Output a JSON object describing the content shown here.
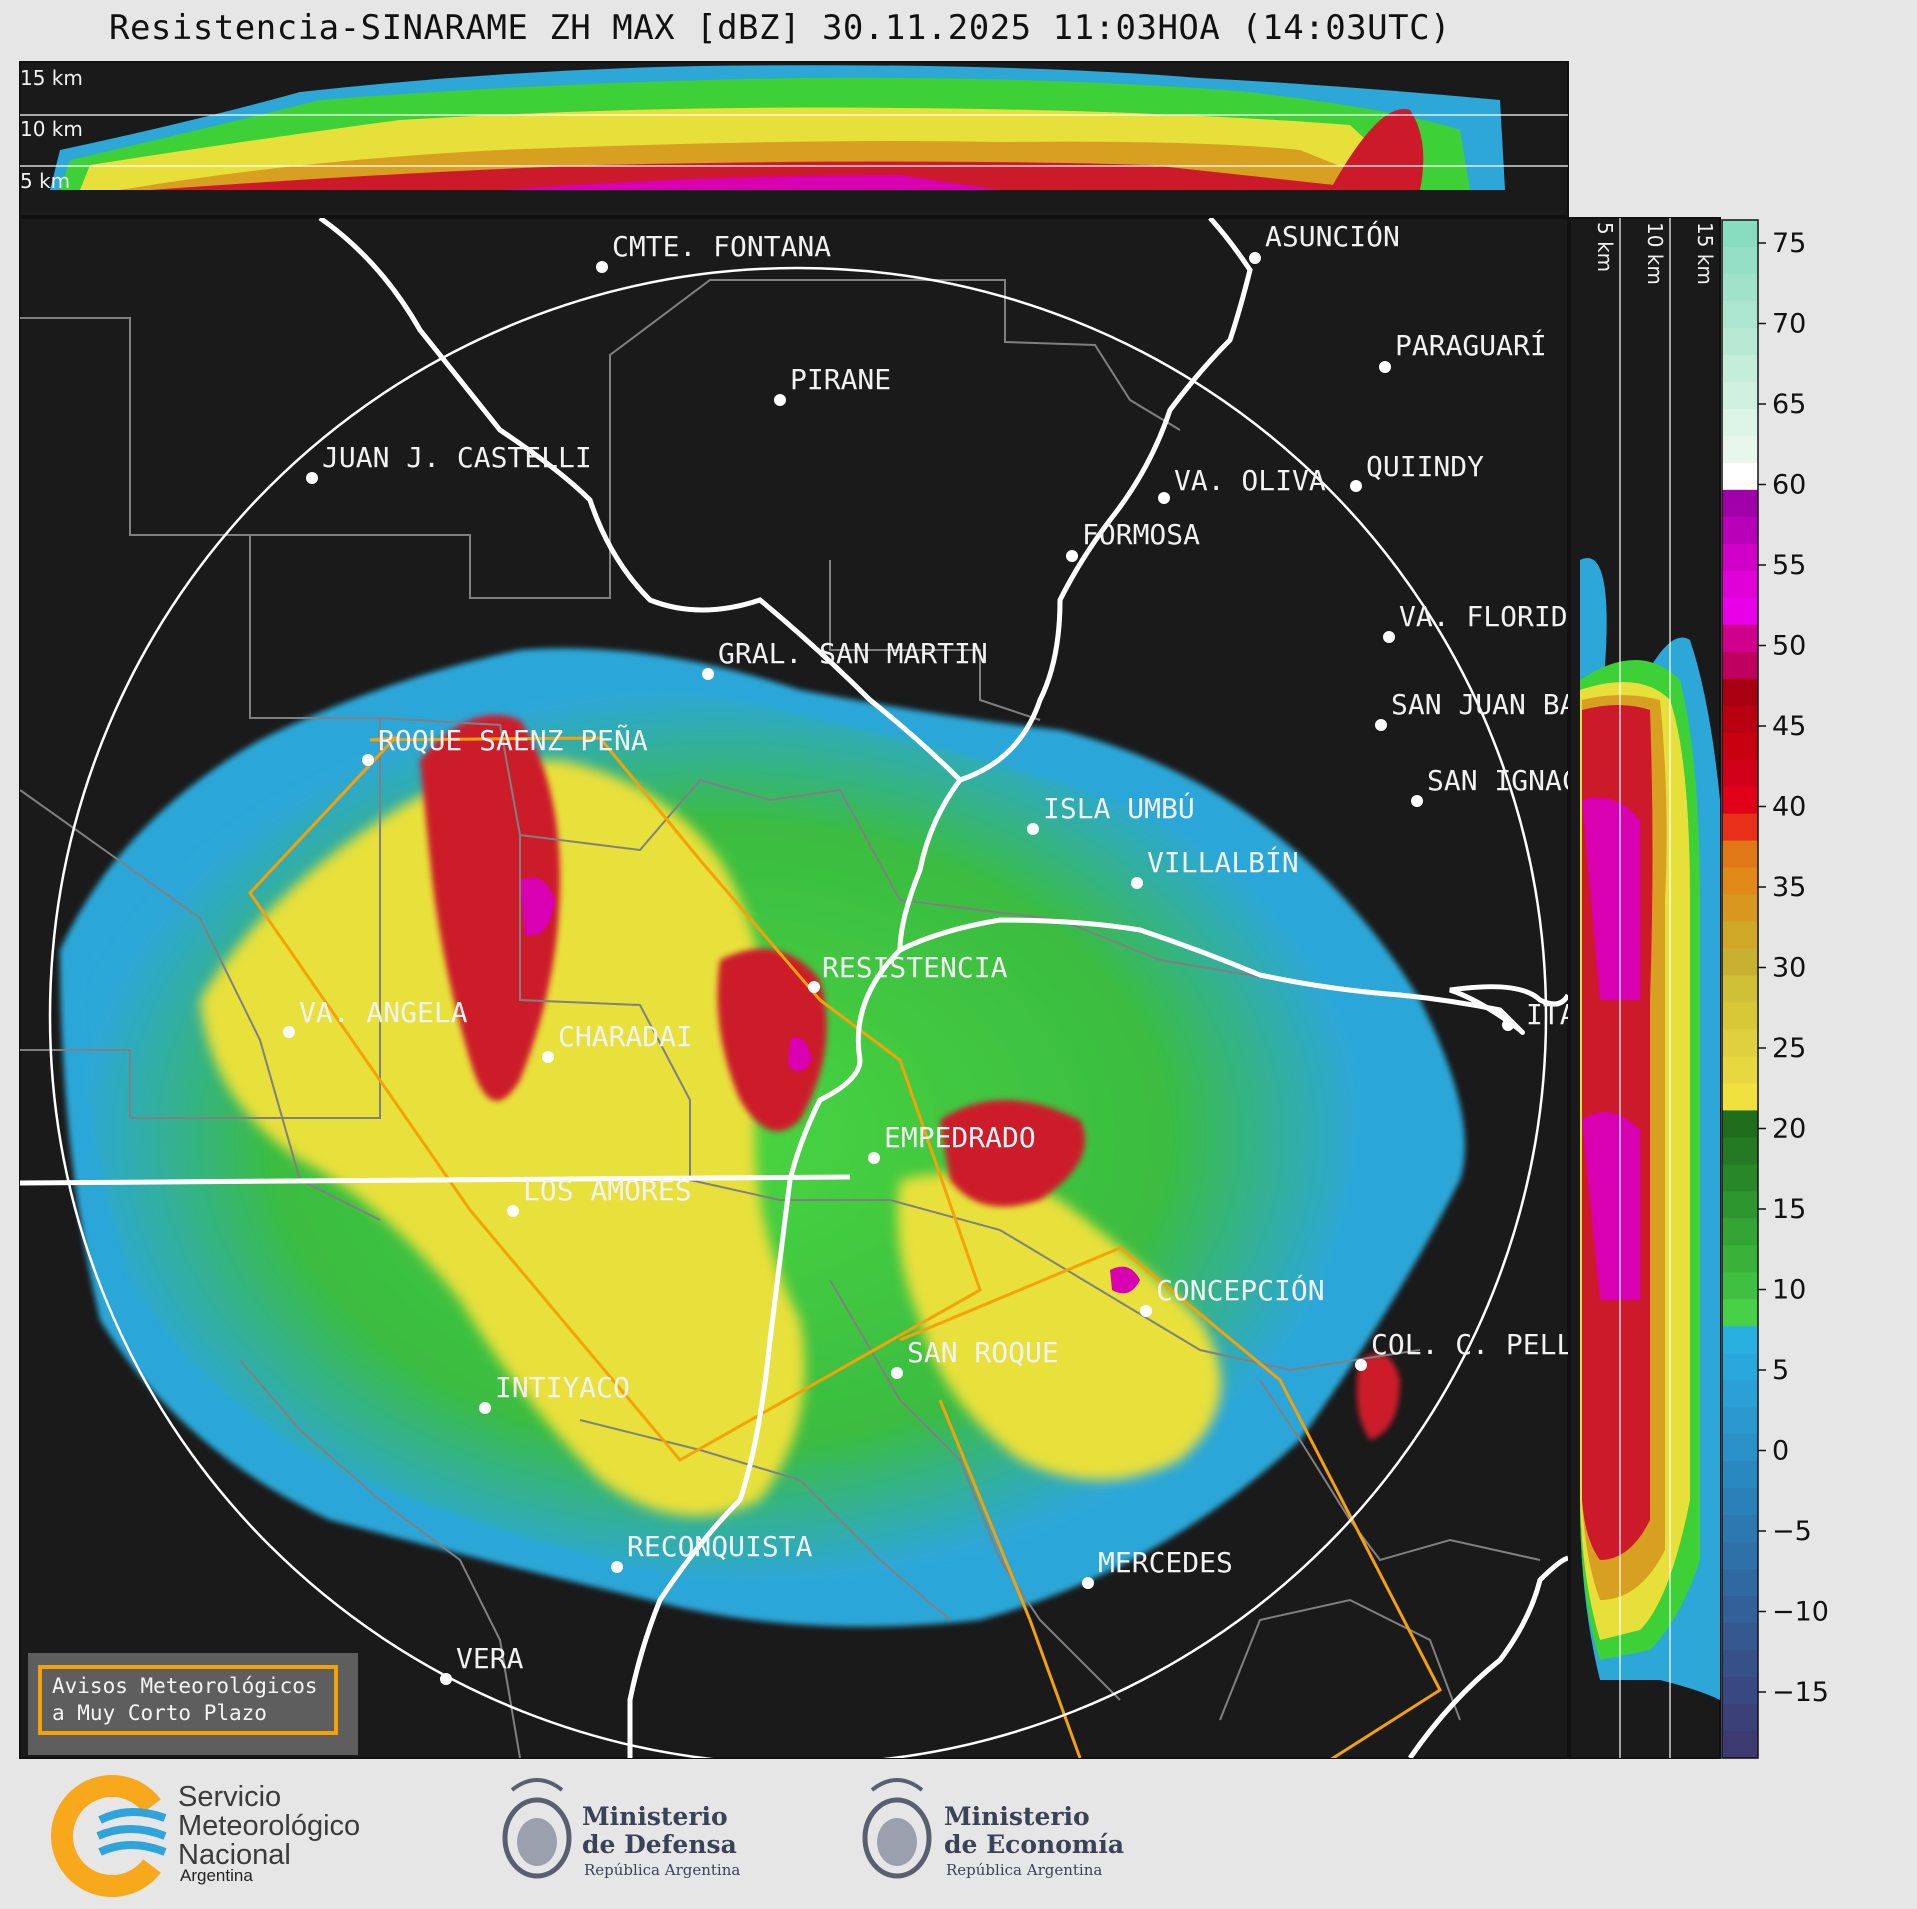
{
  "title": "Resistencia-SINARAME ZH MAX [dBZ] 30.11.2025 11:03HOA (14:03UTC)",
  "top_panel": {
    "height_labels": [
      "15 km",
      "10 km",
      "5 km"
    ]
  },
  "side_panel": {
    "height_labels": [
      "5 km",
      "10 km",
      "15 km"
    ]
  },
  "colorbar": {
    "unit": "dBZ",
    "ticks": [
      "75",
      "70",
      "65",
      "60",
      "55",
      "50",
      "45",
      "40",
      "35",
      "30",
      "25",
      "20",
      "15",
      "10",
      "5",
      "0",
      "−5",
      "−10",
      "−15"
    ]
  },
  "cities": [
    {
      "name": "CMTE. FONTANA"
    },
    {
      "name": "ASUNCIÓN"
    },
    {
      "name": "PARAGUARÍ"
    },
    {
      "name": "PIRANE"
    },
    {
      "name": "JUAN J. CASTELLI"
    },
    {
      "name": "VA. OLIVA"
    },
    {
      "name": "QUIINDY"
    },
    {
      "name": "FORMOSA"
    },
    {
      "name": "VA. FLORIDA"
    },
    {
      "name": "GRAL. SAN MARTIN"
    },
    {
      "name": "SAN JUAN BAUTISTA"
    },
    {
      "name": "SAN IGNACIO"
    },
    {
      "name": "ROQUE SAENZ PEÑA"
    },
    {
      "name": "ISLA UMBÚ"
    },
    {
      "name": "VILLALBÍN"
    },
    {
      "name": "RESISTENCIA"
    },
    {
      "name": "ITATÍ"
    },
    {
      "name": "VA. ANGELA"
    },
    {
      "name": "CHARADAI"
    },
    {
      "name": "EMPEDRADO"
    },
    {
      "name": "LOS AMORES"
    },
    {
      "name": "CONCEPCIÓN"
    },
    {
      "name": "COL. C. PELLEGRINI"
    },
    {
      "name": "SAN ROQUE"
    },
    {
      "name": "INTIYACO"
    },
    {
      "name": "RECONQUISTA"
    },
    {
      "name": "MERCEDES"
    },
    {
      "name": "VERA"
    }
  ],
  "warning_box": {
    "line1": "Avisos Meteorológicos",
    "line2": "a Muy Corto Plazo"
  },
  "logos": {
    "smn": {
      "line1": "Servicio",
      "line2": "Meteorológico",
      "line3": "Nacional",
      "country": "Argentina"
    },
    "defensa": {
      "line1": "Ministerio",
      "line2": "de Defensa",
      "sub": "República Argentina"
    },
    "economia": {
      "line1": "Ministerio",
      "line2": "de Economía",
      "sub": "República Argentina"
    }
  },
  "colors": {
    "map_background": "#1a1a1a",
    "range_ring": "#ffffff",
    "warning_polygon": "#f5a10a",
    "border_grey": "#808080"
  }
}
